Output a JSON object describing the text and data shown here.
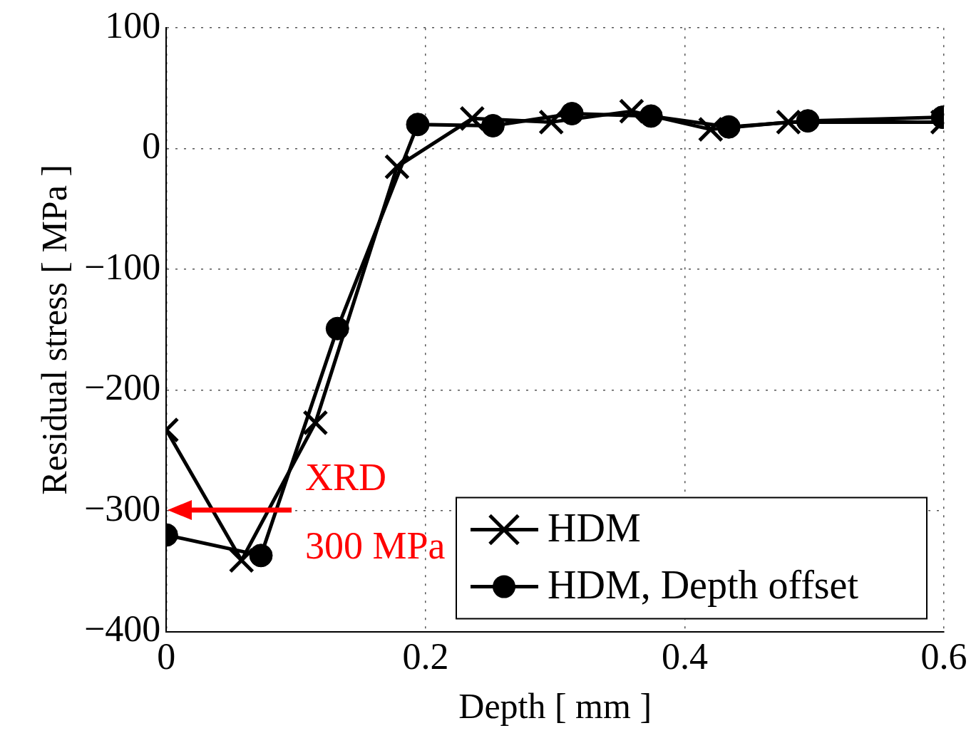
{
  "chart_data": {
    "type": "line",
    "xlabel": "Depth [ mm ]",
    "ylabel": "Residual stress [ MPa ]",
    "xlim": [
      0,
      0.6
    ],
    "xticks": [
      0,
      0.2,
      0.4,
      0.6
    ],
    "ylim": [
      -400,
      100
    ],
    "yticks": [
      {
        "value": -400,
        "label": "−400"
      },
      {
        "value": -300,
        "label": "−300"
      },
      {
        "value": -200,
        "label": "−200"
      },
      {
        "value": -100,
        "label": "−100"
      },
      0,
      100
    ],
    "grid": true,
    "legend": "bottom right",
    "line_style": "solid",
    "series": [
      {
        "name": "HDM",
        "color": "#000000",
        "marker": "cross",
        "x": [
          0,
          0.058,
          0.115,
          0.178,
          0.236,
          0.297,
          0.359,
          0.42,
          0.48,
          0.599
        ],
        "values": [
          -233,
          -341,
          -227,
          -15,
          25,
          22,
          31,
          16,
          22,
          22
        ]
      },
      {
        "name": "HDM, Depth offset",
        "color": "#000000",
        "marker": "circle",
        "x": [
          0,
          0.073,
          0.132,
          0.194,
          0.252,
          0.313,
          0.374,
          0.434,
          0.495,
          0.599
        ],
        "values": [
          -320,
          -337,
          -149,
          20,
          19,
          29,
          27,
          18,
          23,
          26
        ]
      }
    ],
    "annotations": [
      "XRD",
      "300 MPa"
    ]
  }
}
